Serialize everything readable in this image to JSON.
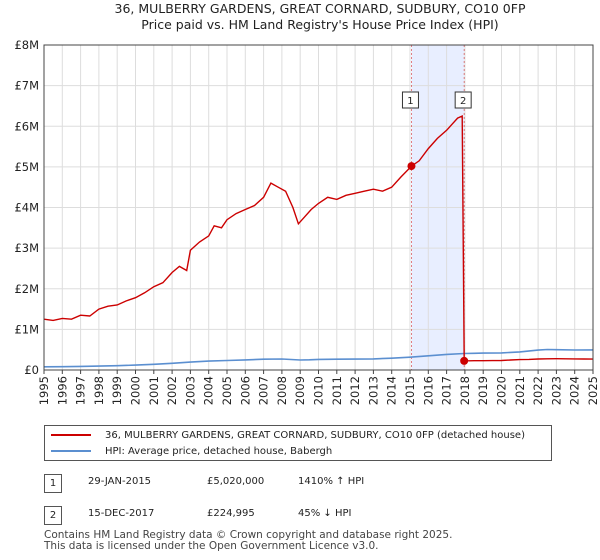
{
  "chart_data": {
    "type": "line",
    "title": "36, MULBERRY GARDENS, GREAT CORNARD, SUDBURY, CO10 0FP",
    "subtitle": "Price paid vs. HM Land Registry's House Price Index (HPI)",
    "xlim": [
      1995,
      2025
    ],
    "ylim": [
      0,
      8000000
    ],
    "y_ticks": [
      0,
      1000000,
      2000000,
      3000000,
      4000000,
      5000000,
      6000000,
      7000000,
      8000000
    ],
    "y_tick_labels": [
      "£0",
      "£1M",
      "£2M",
      "£3M",
      "£4M",
      "£5M",
      "£6M",
      "£7M",
      "£8M"
    ],
    "x_ticks": [
      1995,
      1996,
      1997,
      1998,
      1999,
      2000,
      2001,
      2002,
      2003,
      2004,
      2005,
      2006,
      2007,
      2008,
      2009,
      2010,
      2011,
      2012,
      2013,
      2014,
      2015,
      2016,
      2017,
      2018,
      2019,
      2020,
      2021,
      2022,
      2023,
      2024,
      2025
    ],
    "x_tick_labels": [
      "1995",
      "1996",
      "1997",
      "1998",
      "1999",
      "2000",
      "2001",
      "2002",
      "2003",
      "2004",
      "2005",
      "2006",
      "2007",
      "2008",
      "2009",
      "2010",
      "2011",
      "2012",
      "2013",
      "2014",
      "2015",
      "2016",
      "2017",
      "2018",
      "2019",
      "2020",
      "2021",
      "2022",
      "2023",
      "2024",
      "2025"
    ],
    "shaded_region": [
      2015.08,
      2017.96
    ],
    "series": [
      {
        "name": "36, MULBERRY GARDENS, GREAT CORNARD, SUDBURY, CO10 0FP (detached house)",
        "color": "#cc0000",
        "points": [
          [
            1995.0,
            1250000
          ],
          [
            1995.5,
            1220000
          ],
          [
            1996.0,
            1270000
          ],
          [
            1996.5,
            1250000
          ],
          [
            1997.0,
            1350000
          ],
          [
            1997.5,
            1330000
          ],
          [
            1998.0,
            1500000
          ],
          [
            1998.5,
            1570000
          ],
          [
            1999.0,
            1600000
          ],
          [
            1999.5,
            1700000
          ],
          [
            2000.0,
            1780000
          ],
          [
            2000.5,
            1900000
          ],
          [
            2001.0,
            2050000
          ],
          [
            2001.5,
            2150000
          ],
          [
            2002.0,
            2400000
          ],
          [
            2002.4,
            2550000
          ],
          [
            2002.8,
            2450000
          ],
          [
            2003.0,
            2950000
          ],
          [
            2003.5,
            3150000
          ],
          [
            2004.0,
            3300000
          ],
          [
            2004.3,
            3550000
          ],
          [
            2004.7,
            3500000
          ],
          [
            2005.0,
            3700000
          ],
          [
            2005.5,
            3850000
          ],
          [
            2006.0,
            3950000
          ],
          [
            2006.5,
            4050000
          ],
          [
            2007.0,
            4250000
          ],
          [
            2007.4,
            4600000
          ],
          [
            2007.8,
            4500000
          ],
          [
            2008.2,
            4400000
          ],
          [
            2008.6,
            4000000
          ],
          [
            2008.9,
            3600000
          ],
          [
            2009.2,
            3750000
          ],
          [
            2009.6,
            3950000
          ],
          [
            2010.0,
            4100000
          ],
          [
            2010.5,
            4250000
          ],
          [
            2011.0,
            4200000
          ],
          [
            2011.5,
            4300000
          ],
          [
            2012.0,
            4350000
          ],
          [
            2012.5,
            4400000
          ],
          [
            2013.0,
            4450000
          ],
          [
            2013.5,
            4400000
          ],
          [
            2014.0,
            4500000
          ],
          [
            2014.5,
            4750000
          ],
          [
            2015.08,
            5020000
          ],
          [
            2015.5,
            5150000
          ],
          [
            2016.0,
            5450000
          ],
          [
            2016.5,
            5700000
          ],
          [
            2017.0,
            5900000
          ],
          [
            2017.3,
            6050000
          ],
          [
            2017.6,
            6200000
          ],
          [
            2017.85,
            6250000
          ],
          [
            2017.96,
            224995
          ],
          [
            2018.5,
            230000
          ],
          [
            2019.0,
            230000
          ],
          [
            2019.5,
            232000
          ],
          [
            2020.0,
            235000
          ],
          [
            2020.5,
            245000
          ],
          [
            2021.0,
            255000
          ],
          [
            2021.5,
            262000
          ],
          [
            2022.0,
            270000
          ],
          [
            2022.5,
            276000
          ],
          [
            2023.0,
            278000
          ],
          [
            2023.5,
            275000
          ],
          [
            2024.0,
            272000
          ],
          [
            2024.5,
            270000
          ],
          [
            2025.0,
            268000
          ]
        ]
      },
      {
        "name": "HPI: Average price, detached house, Babergh",
        "color": "#5b8fd0",
        "points": [
          [
            1995.0,
            80000
          ],
          [
            1996.0,
            82000
          ],
          [
            1997.0,
            88000
          ],
          [
            1998.0,
            95000
          ],
          [
            1999.0,
            105000
          ],
          [
            2000.0,
            120000
          ],
          [
            2001.0,
            140000
          ],
          [
            2002.0,
            165000
          ],
          [
            2003.0,
            195000
          ],
          [
            2004.0,
            220000
          ],
          [
            2005.0,
            235000
          ],
          [
            2006.0,
            248000
          ],
          [
            2007.0,
            265000
          ],
          [
            2008.0,
            270000
          ],
          [
            2008.5,
            258000
          ],
          [
            2009.0,
            245000
          ],
          [
            2009.5,
            252000
          ],
          [
            2010.0,
            262000
          ],
          [
            2011.0,
            265000
          ],
          [
            2012.0,
            268000
          ],
          [
            2013.0,
            272000
          ],
          [
            2014.0,
            290000
          ],
          [
            2015.0,
            315000
          ],
          [
            2016.0,
            350000
          ],
          [
            2017.0,
            385000
          ],
          [
            2017.96,
            405000
          ],
          [
            2018.5,
            412000
          ],
          [
            2019.0,
            415000
          ],
          [
            2020.0,
            420000
          ],
          [
            2021.0,
            445000
          ],
          [
            2022.0,
            490000
          ],
          [
            2022.5,
            505000
          ],
          [
            2023.0,
            500000
          ],
          [
            2024.0,
            492000
          ],
          [
            2025.0,
            495000
          ]
        ]
      }
    ],
    "annotations": [
      {
        "label": "1",
        "x": 2015.08,
        "y": 5020000
      },
      {
        "label": "2",
        "x": 2017.96,
        "y": 224995
      }
    ]
  },
  "legend": {
    "red_label": "36, MULBERRY GARDENS, GREAT CORNARD, SUDBURY, CO10 0FP (detached house)",
    "blue_label": "HPI: Average price, detached house, Babergh"
  },
  "sales": [
    {
      "num": "1",
      "date": "29-JAN-2015",
      "price": "£5,020,000",
      "hpi": "1410% ↑ HPI"
    },
    {
      "num": "2",
      "date": "15-DEC-2017",
      "price": "£224,995",
      "hpi": "45% ↓ HPI"
    }
  ],
  "footer": {
    "line1": "Contains HM Land Registry data © Crown copyright and database right 2025.",
    "line2": "This data is licensed under the Open Government Licence v3.0."
  }
}
